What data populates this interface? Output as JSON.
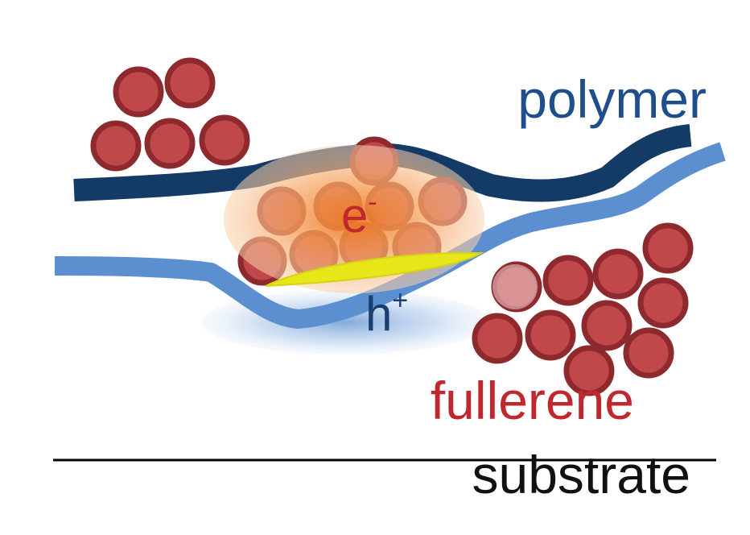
{
  "labels": {
    "polymer": "polymer",
    "fullerene": "fullerene",
    "substrate": "substrate",
    "electron_base": "e",
    "electron_sup": "-",
    "hole_base": "h",
    "hole_sup": "+"
  },
  "colors": {
    "background": "#ffffff",
    "polymer_dark": "#143a66",
    "polymer_light": "#5b8fd0",
    "fullerene_fill": "#c0474a",
    "fullerene_stroke": "#8e2a2d",
    "fullerene_text": "#c0282f",
    "electron_cloud": "#f4a060",
    "hole_cloud": "#a9c6e8",
    "interface_highlight": "#e6e619",
    "substrate_line": "#000000"
  }
}
